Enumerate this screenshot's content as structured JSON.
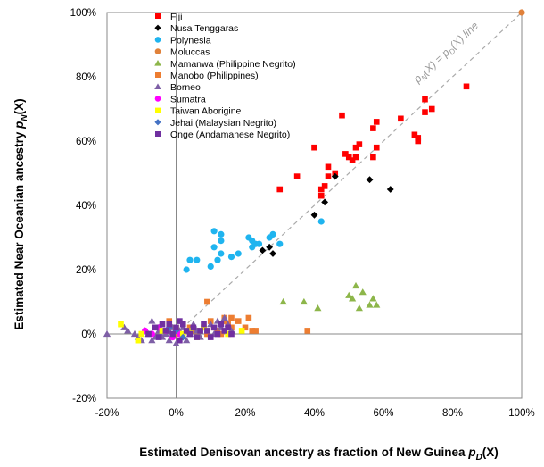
{
  "chart_data": {
    "type": "scatter",
    "title": "",
    "xlabel": "Estimated Denisovan ancestry as fraction of New Guinea",
    "xlabel_symbol": "p",
    "xlabel_sub": "D",
    "xlabel_suffix": "(X)",
    "ylabel": "Estimated Near Oceanian ancestry",
    "ylabel_symbol": "p",
    "ylabel_sub": "N",
    "ylabel_suffix": "(X)",
    "xlim": [
      -0.2,
      1.0
    ],
    "ylim": [
      -0.2,
      1.0
    ],
    "x_ticks": [
      -0.2,
      0,
      0.2,
      0.4,
      0.6,
      0.8,
      1.0
    ],
    "y_ticks": [
      -0.2,
      0,
      0.2,
      0.4,
      0.6,
      0.8,
      1.0
    ],
    "x_tick_labels": [
      "-20%",
      "0%",
      "20%",
      "40%",
      "60%",
      "80%",
      "100%"
    ],
    "y_tick_labels": [
      "-20%",
      "0%",
      "20%",
      "40%",
      "60%",
      "80%",
      "100%"
    ],
    "diagonal": {
      "from": [
        0,
        0
      ],
      "to": [
        1,
        1
      ],
      "style": "dashed",
      "color": "#aaaaaa"
    },
    "diagonal_label": {
      "left_p": "p",
      "left_sub": "N",
      "mid": "(X) = ",
      "right_p": "p",
      "right_sub": "D",
      "end": "(X) line"
    },
    "series": [
      {
        "name": "Fiji",
        "marker": "square",
        "color": "#ff0000",
        "points": [
          [
            0.3,
            0.45
          ],
          [
            0.35,
            0.49
          ],
          [
            0.4,
            0.58
          ],
          [
            0.42,
            0.43
          ],
          [
            0.42,
            0.45
          ],
          [
            0.43,
            0.46
          ],
          [
            0.44,
            0.49
          ],
          [
            0.44,
            0.52
          ],
          [
            0.46,
            0.5
          ],
          [
            0.48,
            0.68
          ],
          [
            0.49,
            0.56
          ],
          [
            0.5,
            0.55
          ],
          [
            0.51,
            0.54
          ],
          [
            0.52,
            0.58
          ],
          [
            0.52,
            0.55
          ],
          [
            0.53,
            0.59
          ],
          [
            0.57,
            0.55
          ],
          [
            0.57,
            0.64
          ],
          [
            0.58,
            0.58
          ],
          [
            0.58,
            0.66
          ],
          [
            0.65,
            0.67
          ],
          [
            0.69,
            0.62
          ],
          [
            0.7,
            0.6
          ],
          [
            0.7,
            0.61
          ],
          [
            0.72,
            0.73
          ],
          [
            0.72,
            0.69
          ],
          [
            0.74,
            0.7
          ],
          [
            0.84,
            0.77
          ]
        ]
      },
      {
        "name": "Nusa Tenggaras",
        "marker": "diamond",
        "color": "#000000",
        "points": [
          [
            0.25,
            0.26
          ],
          [
            0.27,
            0.27
          ],
          [
            0.28,
            0.25
          ],
          [
            0.4,
            0.37
          ],
          [
            0.43,
            0.41
          ],
          [
            0.46,
            0.49
          ],
          [
            0.56,
            0.48
          ],
          [
            0.62,
            0.45
          ]
        ]
      },
      {
        "name": "Polynesia",
        "marker": "circle",
        "color": "#1fb4ef",
        "points": [
          [
            0.03,
            0.2
          ],
          [
            0.04,
            0.23
          ],
          [
            0.06,
            0.23
          ],
          [
            0.1,
            0.21
          ],
          [
            0.11,
            0.27
          ],
          [
            0.11,
            0.32
          ],
          [
            0.12,
            0.23
          ],
          [
            0.13,
            0.25
          ],
          [
            0.13,
            0.31
          ],
          [
            0.13,
            0.29
          ],
          [
            0.16,
            0.24
          ],
          [
            0.18,
            0.25
          ],
          [
            0.21,
            0.3
          ],
          [
            0.22,
            0.29
          ],
          [
            0.22,
            0.27
          ],
          [
            0.23,
            0.28
          ],
          [
            0.24,
            0.28
          ],
          [
            0.27,
            0.3
          ],
          [
            0.28,
            0.31
          ],
          [
            0.3,
            0.28
          ],
          [
            0.42,
            0.35
          ]
        ]
      },
      {
        "name": "Moluccas",
        "marker": "circle",
        "color": "#e0813a",
        "points": [
          [
            1.0,
            1.0
          ]
        ]
      },
      {
        "name": "Mamanwa (Philippine Negrito)",
        "marker": "triangle",
        "color": "#8db64a",
        "points": [
          [
            0.31,
            0.1
          ],
          [
            0.37,
            0.1
          ],
          [
            0.41,
            0.08
          ],
          [
            0.5,
            0.12
          ],
          [
            0.51,
            0.11
          ],
          [
            0.52,
            0.15
          ],
          [
            0.53,
            0.08
          ],
          [
            0.54,
            0.13
          ],
          [
            0.56,
            0.09
          ],
          [
            0.57,
            0.11
          ],
          [
            0.58,
            0.09
          ]
        ]
      },
      {
        "name": "Manobo (Philippines)",
        "marker": "square",
        "color": "#ed7d31",
        "points": [
          [
            -0.02,
            0.04
          ],
          [
            0.0,
            0.0
          ],
          [
            0.02,
            0.03
          ],
          [
            0.04,
            0.02
          ],
          [
            0.05,
            0.01
          ],
          [
            0.06,
            0.01
          ],
          [
            0.08,
            0.02
          ],
          [
            0.09,
            0.1
          ],
          [
            0.1,
            0.04
          ],
          [
            0.11,
            0.02
          ],
          [
            0.12,
            0.01
          ],
          [
            0.14,
            0.05
          ],
          [
            0.14,
            0.04
          ],
          [
            0.15,
            0.03
          ],
          [
            0.16,
            0.02
          ],
          [
            0.16,
            0.05
          ],
          [
            0.18,
            0.04
          ],
          [
            0.2,
            0.02
          ],
          [
            0.21,
            0.05
          ],
          [
            0.22,
            0.01
          ],
          [
            0.23,
            0.01
          ],
          [
            0.38,
            0.01
          ],
          [
            0.09,
            0.0
          ],
          [
            0.13,
            0.0
          ]
        ]
      },
      {
        "name": "Borneo",
        "marker": "triangle",
        "color": "#7e5fa6",
        "points": [
          [
            -0.2,
            0.0
          ],
          [
            -0.15,
            0.02
          ],
          [
            -0.14,
            0.01
          ],
          [
            -0.12,
            0.0
          ],
          [
            -0.11,
            -0.01
          ],
          [
            -0.1,
            -0.02
          ],
          [
            -0.09,
            0.01
          ],
          [
            -0.08,
            0.0
          ],
          [
            -0.07,
            0.04
          ],
          [
            -0.07,
            -0.02
          ],
          [
            -0.06,
            -0.01
          ],
          [
            -0.05,
            0.02
          ],
          [
            -0.05,
            0.01
          ],
          [
            -0.04,
            -0.01
          ],
          [
            -0.03,
            0.0
          ],
          [
            -0.02,
            0.01
          ],
          [
            -0.02,
            -0.02
          ],
          [
            -0.01,
            0.02
          ],
          [
            0.0,
            -0.03
          ],
          [
            0.01,
            0.01
          ],
          [
            0.02,
            0.02
          ],
          [
            0.03,
            -0.02
          ],
          [
            0.04,
            0.0
          ],
          [
            0.05,
            0.03
          ],
          [
            0.06,
            0.01
          ],
          [
            0.07,
            -0.01
          ],
          [
            0.08,
            0.02
          ],
          [
            0.1,
            0.03
          ],
          [
            0.11,
            0.0
          ],
          [
            0.12,
            0.04
          ],
          [
            0.13,
            0.02
          ],
          [
            0.14,
            0.05
          ],
          [
            0.15,
            0.03
          ],
          [
            0.16,
            0.01
          ]
        ]
      },
      {
        "name": "Sumatra",
        "marker": "circle",
        "color": "#ff00ff",
        "points": [
          [
            -0.09,
            0.01
          ],
          [
            -0.07,
            0.0
          ],
          [
            -0.05,
            0.02
          ],
          [
            -0.03,
            0.01
          ],
          [
            -0.01,
            -0.01
          ],
          [
            0.01,
            0.0
          ]
        ]
      },
      {
        "name": "Taiwan Aborigine",
        "marker": "square",
        "color": "#ffff00",
        "points": [
          [
            -0.16,
            0.03
          ],
          [
            -0.11,
            -0.02
          ],
          [
            -0.1,
            0.0
          ],
          [
            -0.04,
            0.01
          ],
          [
            0.0,
            0.02
          ],
          [
            0.02,
            0.0
          ],
          [
            0.04,
            0.01
          ],
          [
            0.08,
            0.02
          ],
          [
            0.15,
            0.0
          ],
          [
            0.19,
            0.01
          ],
          [
            0.06,
            -0.01
          ]
        ]
      },
      {
        "name": "Jehai (Malaysian Negrito)",
        "marker": "diamond",
        "color": "#4472c4",
        "points": [
          [
            -0.02,
            0.02
          ],
          [
            0.0,
            0.01
          ],
          [
            0.02,
            -0.01
          ]
        ]
      },
      {
        "name": "Onge (Andamanese Negrito)",
        "marker": "square",
        "color": "#7030a0",
        "points": [
          [
            -0.08,
            0.0
          ],
          [
            -0.06,
            0.02
          ],
          [
            -0.05,
            -0.01
          ],
          [
            -0.03,
            0.01
          ],
          [
            -0.02,
            0.03
          ],
          [
            -0.01,
            0.0
          ],
          [
            0.0,
            0.02
          ],
          [
            0.01,
            -0.02
          ],
          [
            0.02,
            0.03
          ],
          [
            0.03,
            0.01
          ],
          [
            0.04,
            0.0
          ],
          [
            0.05,
            0.02
          ],
          [
            0.06,
            -0.01
          ],
          [
            0.07,
            0.01
          ],
          [
            0.08,
            0.03
          ],
          [
            0.09,
            0.01
          ],
          [
            0.1,
            -0.01
          ],
          [
            0.11,
            0.02
          ],
          [
            0.12,
            0.0
          ],
          [
            0.13,
            0.03
          ],
          [
            0.14,
            0.01
          ],
          [
            0.15,
            0.02
          ],
          [
            0.16,
            0.0
          ],
          [
            -0.04,
            0.03
          ],
          [
            0.01,
            0.04
          ]
        ]
      }
    ]
  }
}
